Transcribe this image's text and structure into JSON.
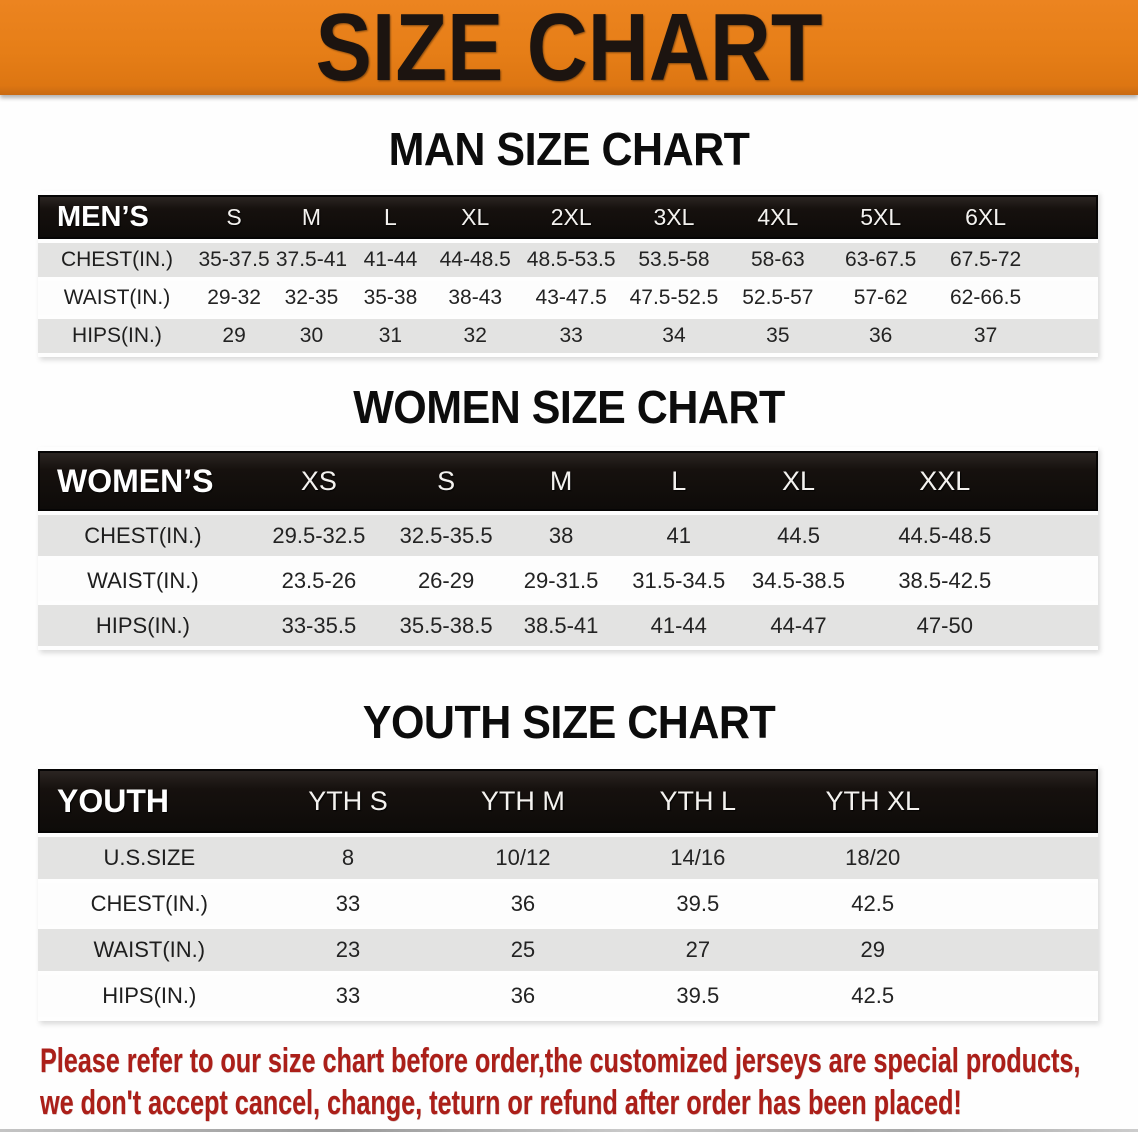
{
  "banner": {
    "title": "SIZE CHART",
    "bg_color": "#e67e17",
    "text_color": "#1c1410"
  },
  "sections": [
    {
      "title": "MAN SIZE CHART",
      "table": {
        "header_label": "MEN’S",
        "sizes": [
          "S",
          "M",
          "L",
          "XL",
          "2XL",
          "3XL",
          "4XL",
          "5XL",
          "6XL"
        ],
        "rows": [
          {
            "label": "CHEST(IN.)",
            "values": [
              "35-37.5",
              "37.5-41",
              "41-44",
              "44-48.5",
              "48.5-53.5",
              "53.5-58",
              "58-63",
              "63-67.5",
              "67.5-72"
            ]
          },
          {
            "label": "WAIST(IN.)",
            "values": [
              "29-32",
              "32-35",
              "35-38",
              "38-43",
              "43-47.5",
              "47.5-52.5",
              "52.5-57",
              "57-62",
              "62-66.5"
            ]
          },
          {
            "label": "HIPS(IN.)",
            "values": [
              "29",
              "30",
              "31",
              "32",
              "33",
              "34",
              "35",
              "36",
              "37"
            ]
          }
        ]
      }
    },
    {
      "title": "WOMEN SIZE CHART",
      "table": {
        "header_label": "WOMEN’S",
        "sizes": [
          "XS",
          "S",
          "M",
          "L",
          "XL",
          "XXL"
        ],
        "rows": [
          {
            "label": "CHEST(IN.)",
            "values": [
              "29.5-32.5",
              "32.5-35.5",
              "38",
              "41",
              "44.5",
              "44.5-48.5"
            ]
          },
          {
            "label": "WAIST(IN.)",
            "values": [
              "23.5-26",
              "26-29",
              "29-31.5",
              "31.5-34.5",
              "34.5-38.5",
              "38.5-42.5"
            ]
          },
          {
            "label": "HIPS(IN.)",
            "values": [
              "33-35.5",
              "35.5-38.5",
              "38.5-41",
              "41-44",
              "44-47",
              "47-50"
            ]
          }
        ]
      }
    },
    {
      "title": "YOUTH SIZE CHART",
      "table": {
        "header_label": "YOUTH",
        "sizes": [
          "YTH S",
          "YTH M",
          "YTH L",
          "YTH XL"
        ],
        "rows": [
          {
            "label": "U.S.SIZE",
            "values": [
              "8",
              "10/12",
              "14/16",
              "18/20"
            ]
          },
          {
            "label": "CHEST(IN.)",
            "values": [
              "33",
              "36",
              "39.5",
              "42.5"
            ]
          },
          {
            "label": "WAIST(IN.)",
            "values": [
              "23",
              "25",
              "27",
              "29"
            ]
          },
          {
            "label": "HIPS(IN.)",
            "values": [
              "33",
              "36",
              "39.5",
              "42.5"
            ]
          }
        ]
      }
    }
  ],
  "style_tokens": {
    "header_row_bg": "#15100d",
    "stripe_row_bg": "#e3e3e2",
    "footer_text_color": "#ab1f19"
  },
  "footer_note": {
    "line1": "Please refer to our size chart before order,the customized jerseys are special products,",
    "line2": "we don't accept cancel, change, teturn or refund after order has been placed!"
  }
}
